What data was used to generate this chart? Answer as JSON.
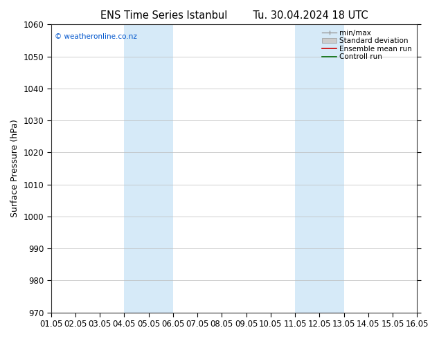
{
  "title_left": "ENS Time Series Istanbul",
  "title_right": "Tu. 30.04.2024 18 UTC",
  "ylabel": "Surface Pressure (hPa)",
  "ylim": [
    970,
    1060
  ],
  "yticks": [
    970,
    980,
    990,
    1000,
    1010,
    1020,
    1030,
    1040,
    1050,
    1060
  ],
  "xlim": [
    0,
    15
  ],
  "xtick_labels": [
    "01.05",
    "02.05",
    "03.05",
    "04.05",
    "05.05",
    "06.05",
    "07.05",
    "08.05",
    "09.05",
    "10.05",
    "11.05",
    "12.05",
    "13.05",
    "14.05",
    "15.05",
    "16.05"
  ],
  "xtick_positions": [
    0,
    1,
    2,
    3,
    4,
    5,
    6,
    7,
    8,
    9,
    10,
    11,
    12,
    13,
    14,
    15
  ],
  "shaded_regions": [
    {
      "xmin": 3.0,
      "xmax": 5.0,
      "color": "#d6eaf8"
    },
    {
      "xmin": 10.0,
      "xmax": 12.0,
      "color": "#d6eaf8"
    }
  ],
  "copyright_text": "© weatheronline.co.nz",
  "copyright_color": "#0055cc",
  "background_color": "#ffffff",
  "plot_bg_color": "#ffffff",
  "legend_entries": [
    {
      "label": "min/max",
      "type": "minmax"
    },
    {
      "label": "Standard deviation",
      "type": "stddev"
    },
    {
      "label": "Ensemble mean run",
      "type": "line",
      "color": "#cc0000"
    },
    {
      "label": "Controll run",
      "type": "line",
      "color": "#006600"
    }
  ],
  "title_fontsize": 10.5,
  "axis_label_fontsize": 9,
  "tick_fontsize": 8.5,
  "legend_fontsize": 7.5,
  "figsize": [
    6.34,
    4.9
  ],
  "dpi": 100
}
